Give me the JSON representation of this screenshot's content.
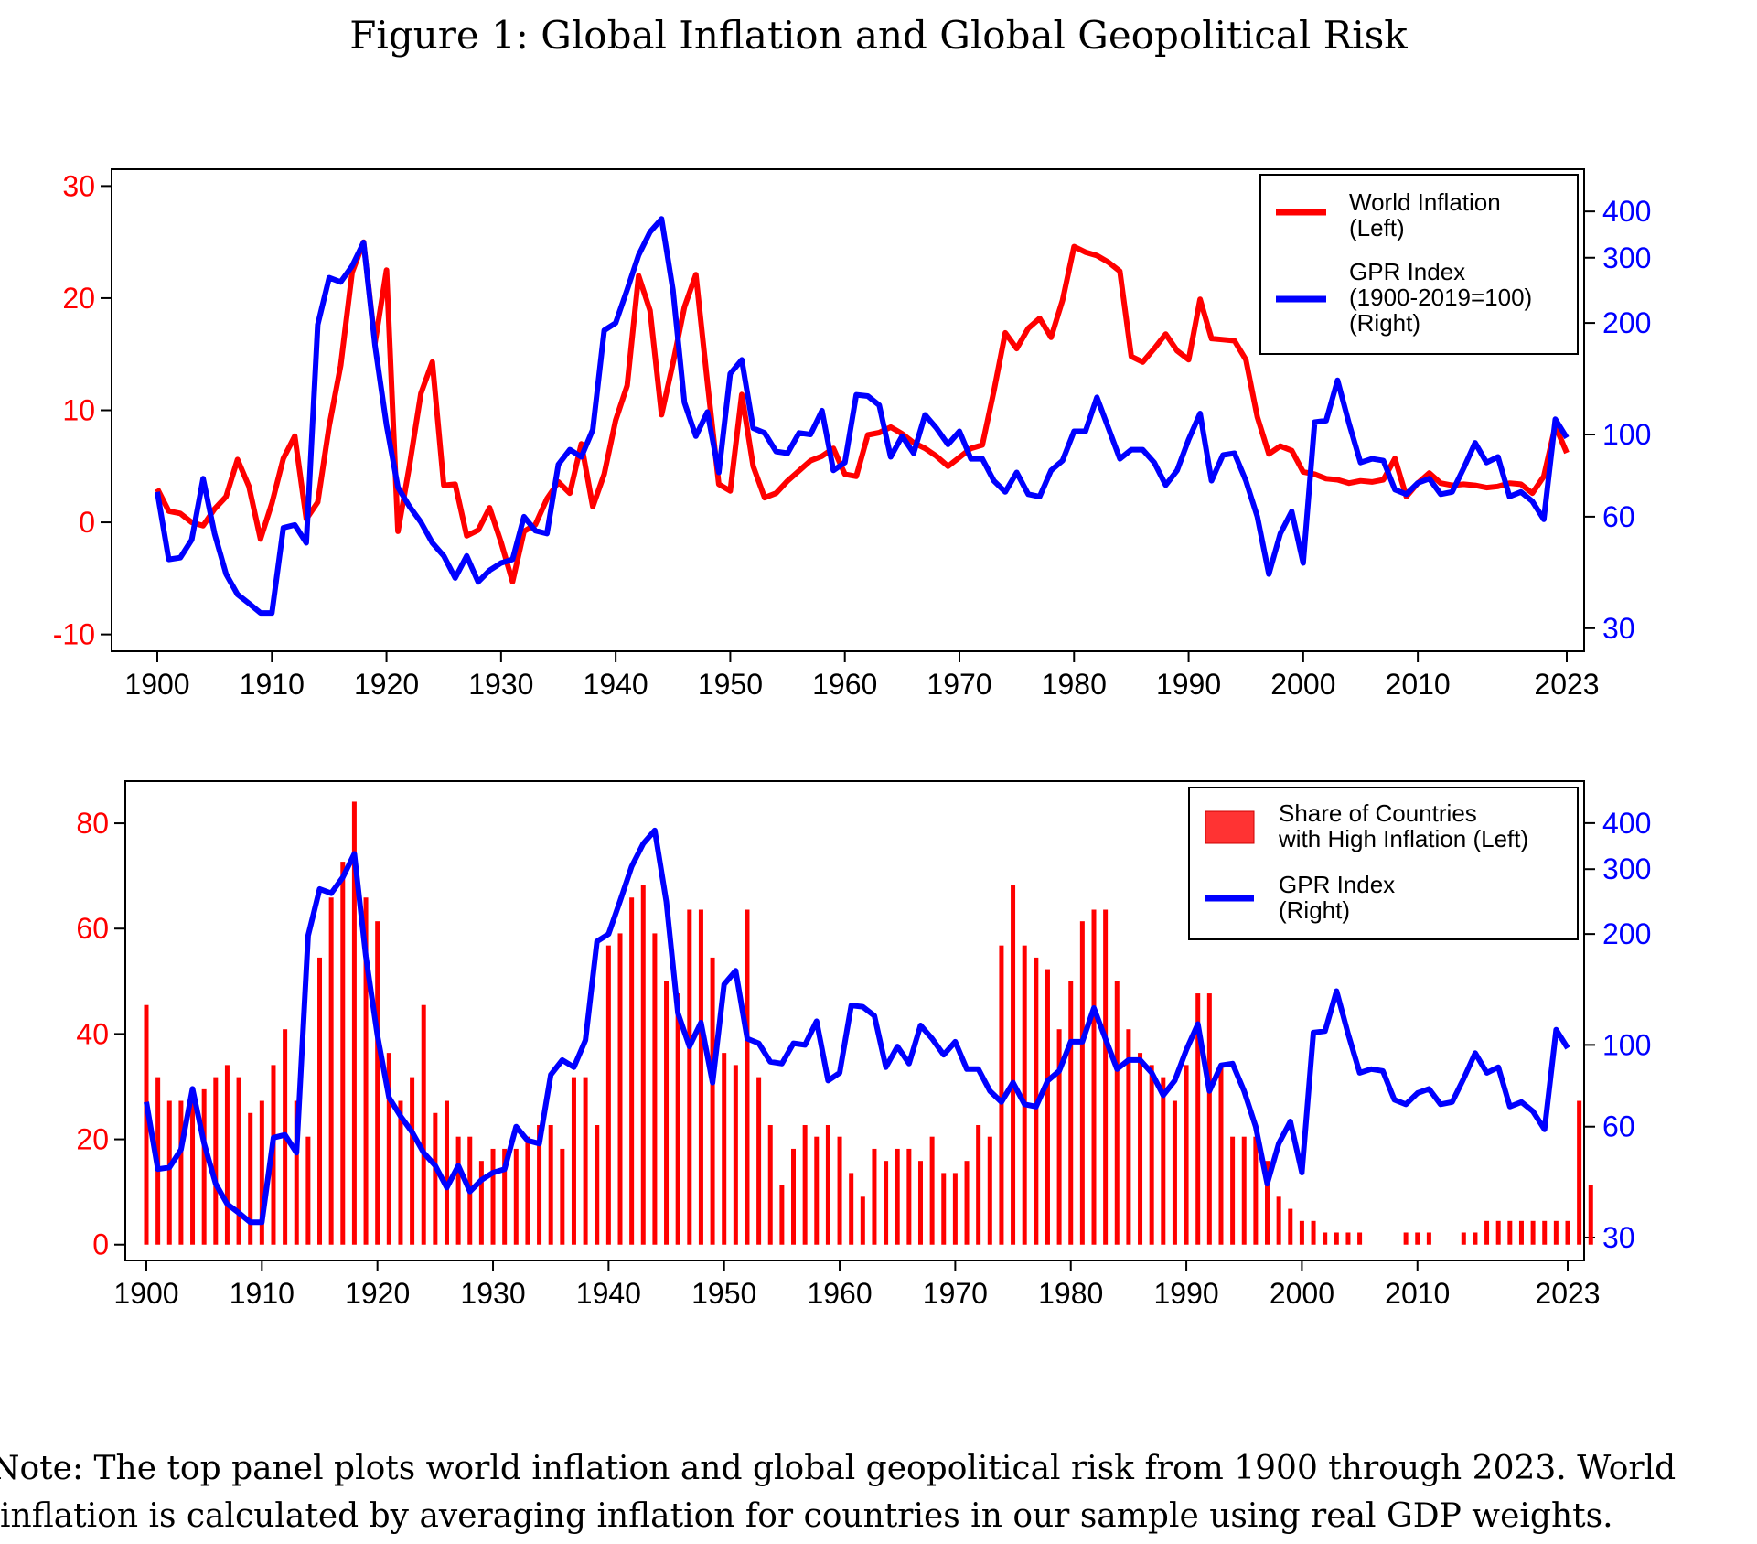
{
  "title": "Figure 1: Global Inflation and Global Geopolitical Risk",
  "note": "Note: The top panel plots world inflation and global geopolitical risk from 1900 through 2023. World inflation is calculated by averaging inflation for countries in our sample using real GDP weights.",
  "colors": {
    "inflation": "#ff0000",
    "gpr": "#0000ff",
    "bars": "#ff3333"
  },
  "chart_data": [
    {
      "type": "line",
      "panel": "top",
      "x_ticks": [
        "1900",
        "1910",
        "1920",
        "1930",
        "1940",
        "1950",
        "1960",
        "1970",
        "1980",
        "1990",
        "2000",
        "2010",
        "2023"
      ],
      "y_left_ticks": [
        "-10",
        "0",
        "10",
        "20",
        "30"
      ],
      "y_left_lim": [
        -11.5,
        31.5
      ],
      "y_right_ticks": [
        "30",
        "60",
        "100",
        "200",
        "300",
        "400"
      ],
      "y_right_scale": "log",
      "y_right_lim": [
        26,
        520
      ],
      "legend": {
        "position": "top-right",
        "entries": [
          {
            "label_lines": [
              "World Inflation",
              "(Left)"
            ]
          },
          {
            "label_lines": [
              "GPR Index",
              "(1900-2019=100)",
              "(Right)"
            ]
          }
        ]
      },
      "series": [
        {
          "name": "World Inflation (Left)",
          "axis": "left",
          "x_start": 1900,
          "values": [
            3,
            1,
            0.8,
            0,
            -0.3,
            1.2,
            2.3,
            5.6,
            3.2,
            -1.5,
            1.7,
            5.7,
            7.7,
            0.3,
            1.8,
            8.6,
            14,
            22.3,
            25,
            16,
            22.5,
            -0.8,
            5,
            11.5,
            14.3,
            3.3,
            3.4,
            -1.2,
            -0.7,
            1.3,
            -1.8,
            -5.3,
            -0.8,
            -0.2,
            2.1,
            3.6,
            2.6,
            7,
            1.4,
            4.3,
            9.1,
            12.2,
            22,
            18.9,
            9.6,
            14.2,
            19.2,
            22.1,
            12.5,
            3.4,
            2.8,
            11.4,
            5,
            2.2,
            2.6,
            3.7,
            4.6,
            5.5,
            5.9,
            6.6,
            4.3,
            4.1,
            7.8,
            8,
            8.5,
            7.9,
            7.1,
            6.6,
            5.9,
            5,
            5.8,
            6.6,
            6.9,
            11.7,
            16.9,
            15.5,
            17.3,
            18.2,
            16.5,
            19.8,
            24.6,
            24.1,
            23.8,
            23.2,
            22.4,
            14.8,
            14.3,
            15.5,
            16.8,
            15.3,
            14.5,
            19.9,
            16.4,
            16.3,
            16.2,
            14.5,
            9.4,
            6.1,
            6.8,
            6.4,
            4.5,
            4.3,
            3.9,
            3.8,
            3.5,
            3.7,
            3.6,
            3.8,
            5.7,
            2.3,
            3.5,
            4.4,
            3.5,
            3.3,
            3.4,
            3.3,
            3.1,
            3.2,
            3.5,
            3.4,
            2.6,
            4.1,
            8.6,
            6.2
          ]
        },
        {
          "name": "GPR Index (1900-2019=100) (Right)",
          "axis": "right",
          "x_start": 1900,
          "values": [
            70,
            46,
            46.5,
            52,
            76,
            54,
            42,
            37,
            35,
            33,
            33,
            56,
            57,
            51,
            198,
            265,
            258,
            285,
            330,
            174,
            106,
            72,
            64,
            58,
            51,
            47,
            41,
            47,
            40,
            43,
            45,
            46,
            60,
            55,
            54,
            83,
            91,
            87,
            103,
            191,
            200,
            246,
            305,
            352,
            382,
            245,
            122,
            99,
            115,
            79,
            146,
            159,
            104,
            101,
            90,
            89,
            101,
            100,
            116,
            80,
            84,
            128,
            127,
            120,
            87,
            99,
            89,
            113,
            104,
            94,
            102,
            86,
            86,
            75,
            70,
            79,
            69,
            68,
            80,
            85,
            102,
            102,
            126,
            104,
            86,
            91,
            91,
            84,
            73,
            80,
            97,
            114,
            75,
            88,
            89,
            75,
            60,
            42,
            54,
            62,
            45,
            108,
            109,
            140,
            107,
            84,
            86,
            85,
            71,
            69,
            74,
            76,
            69,
            70,
            81,
            95,
            84,
            87,
            68,
            70,
            66,
            59,
            110,
            98
          ]
        }
      ]
    },
    {
      "type": "bar",
      "panel": "bottom",
      "x_ticks": [
        "1900",
        "1910",
        "1920",
        "1930",
        "1940",
        "1950",
        "1960",
        "1970",
        "1980",
        "1990",
        "2000",
        "2010",
        "2023"
      ],
      "y_left_ticks": [
        "0",
        "20",
        "40",
        "60",
        "80"
      ],
      "y_left_lim": [
        -3,
        88
      ],
      "y_right_ticks": [
        "30",
        "60",
        "100",
        "200",
        "300",
        "400"
      ],
      "y_right_scale": "log",
      "y_right_lim": [
        26,
        520
      ],
      "legend": {
        "position": "top-right",
        "entries": [
          {
            "label_lines": [
              "Share of Countries",
              "with High Inflation (Left)"
            ]
          },
          {
            "label_lines": [
              "GPR Index",
              "(Right)"
            ]
          }
        ]
      },
      "series": [
        {
          "name": "Share of Countries with High Inflation (Left)",
          "axis": "left",
          "x_start": 1900,
          "values": [
            45.5,
            31.8,
            27.3,
            27.3,
            27.3,
            29.5,
            31.8,
            34.1,
            31.8,
            25,
            27.3,
            34.1,
            40.9,
            27.3,
            20.5,
            54.5,
            65.9,
            72.7,
            84.1,
            65.9,
            61.4,
            36.4,
            27.3,
            31.8,
            45.5,
            25,
            27.3,
            20.5,
            20.5,
            15.9,
            18.2,
            18.2,
            18.2,
            20.5,
            22.7,
            22.7,
            18.2,
            31.8,
            31.8,
            22.7,
            56.8,
            59.1,
            65.9,
            68.2,
            59.1,
            50,
            47.7,
            63.6,
            63.6,
            54.5,
            36.4,
            34.1,
            63.6,
            31.8,
            22.7,
            11.4,
            18.2,
            22.7,
            20.5,
            22.7,
            20.5,
            13.6,
            9.1,
            18.2,
            15.9,
            18.2,
            18.2,
            15.9,
            20.5,
            13.6,
            13.6,
            15.9,
            22.7,
            20.5,
            56.8,
            68.2,
            56.8,
            54.5,
            52.3,
            40.9,
            50,
            61.4,
            63.6,
            63.6,
            50,
            40.9,
            36.4,
            34.1,
            31.8,
            27.3,
            34.1,
            47.7,
            47.7,
            34.1,
            20.5,
            20.5,
            20.5,
            15.9,
            9.1,
            6.8,
            4.5,
            4.5,
            2.3,
            2.3,
            2.3,
            2.3,
            0,
            0,
            0,
            2.3,
            2.3,
            2.3,
            0,
            0,
            2.3,
            2.3,
            4.5,
            4.5,
            4.5,
            4.5,
            4.5,
            4.5,
            4.5,
            4.5,
            27.3,
            11.4
          ]
        },
        {
          "name": "GPR Index (Right)",
          "axis": "right",
          "x_start": 1900,
          "values": [
            70,
            46,
            46.5,
            52,
            76,
            54,
            42,
            37,
            35,
            33,
            33,
            56,
            57,
            51,
            198,
            265,
            258,
            285,
            330,
            174,
            106,
            72,
            64,
            58,
            51,
            47,
            41,
            47,
            40,
            43,
            45,
            46,
            60,
            55,
            54,
            83,
            91,
            87,
            103,
            191,
            200,
            246,
            305,
            352,
            382,
            245,
            122,
            99,
            115,
            79,
            146,
            159,
            104,
            101,
            90,
            89,
            101,
            100,
            116,
            80,
            84,
            128,
            127,
            120,
            87,
            99,
            89,
            113,
            104,
            94,
            102,
            86,
            86,
            75,
            70,
            79,
            69,
            68,
            80,
            85,
            102,
            102,
            126,
            104,
            86,
            91,
            91,
            84,
            73,
            80,
            97,
            114,
            75,
            88,
            89,
            75,
            60,
            42,
            54,
            62,
            45,
            108,
            109,
            140,
            107,
            84,
            86,
            85,
            71,
            69,
            74,
            76,
            69,
            70,
            81,
            95,
            84,
            87,
            68,
            70,
            66,
            59,
            110,
            98
          ]
        }
      ]
    }
  ]
}
